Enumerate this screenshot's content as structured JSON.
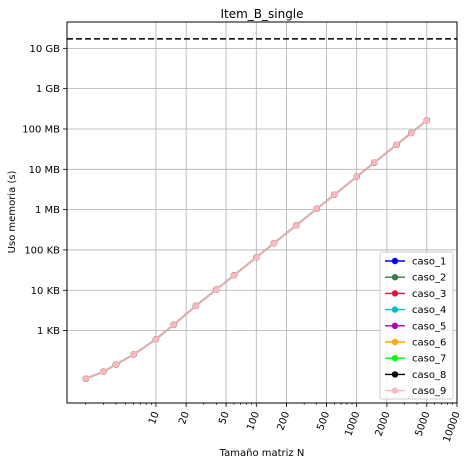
{
  "chart_data": {
    "type": "line",
    "title": "Item_B_single",
    "xlabel": "Tamaño matriz N",
    "ylabel": "Uso memoria (s)",
    "x_scale": "log",
    "y_scale": "log",
    "xlim": [
      1.3,
      10000
    ],
    "ylim": [
      16,
      45000000000
    ],
    "grid": true,
    "legend_position": "bottom-right",
    "x_ticks": [
      10,
      20,
      50,
      100,
      200,
      500,
      1000,
      2000,
      5000,
      10000
    ],
    "x_tick_labels": [
      "10",
      "20",
      "50",
      "100",
      "200",
      "500",
      "1000",
      "2000",
      "5000",
      "10000"
    ],
    "y_ticks": [
      1000,
      10000,
      100000,
      1000000,
      10000000,
      100000000,
      1000000000,
      10000000000
    ],
    "y_tick_labels": [
      "1 KB",
      "10 KB",
      "100 KB",
      "1 MB",
      "10 MB",
      "100 MB",
      "1 GB",
      "10 GB"
    ],
    "hline": {
      "y": 17179869184,
      "style": "dashed",
      "color": "#000000"
    },
    "x": [
      2,
      3,
      4,
      6,
      10,
      15,
      25,
      40,
      60,
      100,
      150,
      250,
      400,
      600,
      1000,
      1500,
      2500,
      3500,
      5000
    ],
    "series": [
      {
        "name": "caso_1",
        "color": "#0000ff",
        "values": [
          64,
          96,
          144,
          256,
          608,
          1392,
          4112,
          10472,
          23528,
          65312,
          146972,
          408032,
          1044512,
          2350112,
          6528032,
          14688032,
          40800032,
          79968032,
          163200032
        ]
      },
      {
        "name": "caso_2",
        "color": "#3a7d44",
        "values": [
          64,
          96,
          144,
          256,
          608,
          1392,
          4112,
          10472,
          23528,
          65312,
          146972,
          408032,
          1044512,
          2350112,
          6528032,
          14688032,
          40800032,
          79968032,
          163200032
        ]
      },
      {
        "name": "caso_3",
        "color": "#dc143c",
        "values": [
          64,
          96,
          144,
          256,
          608,
          1392,
          4112,
          10472,
          23528,
          65312,
          146972,
          408032,
          1044512,
          2350112,
          6528032,
          14688032,
          40800032,
          79968032,
          163200032
        ]
      },
      {
        "name": "caso_4",
        "color": "#00bfbf",
        "values": [
          64,
          96,
          144,
          256,
          608,
          1392,
          4112,
          10472,
          23528,
          65312,
          146972,
          408032,
          1044512,
          2350112,
          6528032,
          14688032,
          40800032,
          79968032,
          163200032
        ]
      },
      {
        "name": "caso_5",
        "color": "#b000b0",
        "values": [
          64,
          96,
          144,
          256,
          608,
          1392,
          4112,
          10472,
          23528,
          65312,
          146972,
          408032,
          1044512,
          2350112,
          6528032,
          14688032,
          40800032,
          79968032,
          163200032
        ]
      },
      {
        "name": "caso_6",
        "color": "#ffa500",
        "values": [
          64,
          96,
          144,
          256,
          608,
          1392,
          4112,
          10472,
          23528,
          65312,
          146972,
          408032,
          1044512,
          2350112,
          6528032,
          14688032,
          40800032,
          79968032,
          163200032
        ]
      },
      {
        "name": "caso_7",
        "color": "#00ff00",
        "values": [
          64,
          96,
          144,
          256,
          608,
          1392,
          4112,
          10472,
          23528,
          65312,
          146972,
          408032,
          1044512,
          2350112,
          6528032,
          14688032,
          40800032,
          79968032,
          163200032
        ]
      },
      {
        "name": "caso_8",
        "color": "#000000",
        "values": [
          64,
          96,
          144,
          256,
          608,
          1392,
          4112,
          10472,
          23528,
          65312,
          146972,
          408032,
          1044512,
          2350112,
          6528032,
          14688032,
          40800032,
          79968032,
          163200032
        ]
      },
      {
        "name": "caso_9",
        "color": "#ffb6c1",
        "values": [
          64,
          96,
          144,
          256,
          608,
          1392,
          4112,
          10472,
          23528,
          65312,
          146972,
          408032,
          1044512,
          2350112,
          6528032,
          14688032,
          40800032,
          79968032,
          163200032
        ]
      }
    ]
  }
}
